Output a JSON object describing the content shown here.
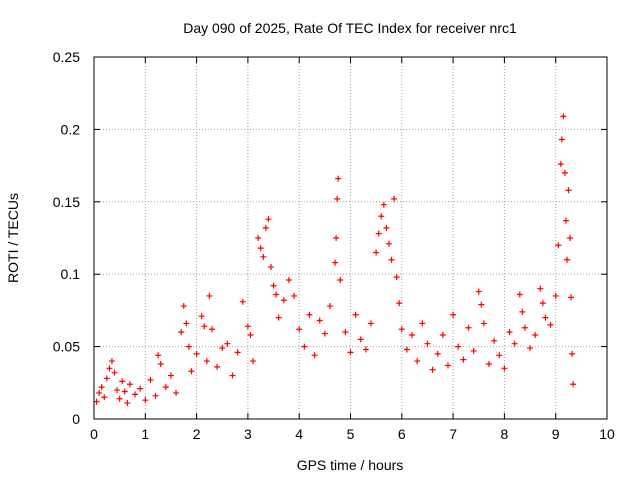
{
  "chart_data": {
    "type": "scatter",
    "title": "Day 090 of 2025, Rate Of TEC Index for receiver nrc1",
    "xlabel": "GPS time / hours",
    "ylabel": "ROTI / TECUs",
    "xlim": [
      0,
      10
    ],
    "ylim": [
      0,
      0.25
    ],
    "xticks": [
      0,
      1,
      2,
      3,
      4,
      5,
      6,
      7,
      8,
      9,
      10
    ],
    "yticks": [
      0,
      0.05,
      0.1,
      0.15,
      0.2,
      0.25
    ],
    "xtick_labels": [
      "0",
      "1",
      "2",
      "3",
      "4",
      "5",
      "6",
      "7",
      "8",
      "9",
      "10"
    ],
    "ytick_labels": [
      "0",
      "0.05",
      "0.1",
      "0.15",
      "0.2",
      "0.25"
    ],
    "grid": true,
    "marker": "plus",
    "colors": {
      "series": "#ff0000",
      "grid": "#a0a0a0",
      "axes": "#000000"
    },
    "series": [
      {
        "name": "ROTI",
        "points": [
          [
            0.05,
            0.012
          ],
          [
            0.1,
            0.018
          ],
          [
            0.15,
            0.022
          ],
          [
            0.2,
            0.015
          ],
          [
            0.25,
            0.028
          ],
          [
            0.3,
            0.035
          ],
          [
            0.35,
            0.04
          ],
          [
            0.4,
            0.032
          ],
          [
            0.45,
            0.02
          ],
          [
            0.5,
            0.014
          ],
          [
            0.55,
            0.026
          ],
          [
            0.6,
            0.019
          ],
          [
            0.65,
            0.011
          ],
          [
            0.7,
            0.024
          ],
          [
            0.8,
            0.017
          ],
          [
            0.9,
            0.021
          ],
          [
            1.0,
            0.013
          ],
          [
            1.1,
            0.027
          ],
          [
            1.2,
            0.016
          ],
          [
            1.25,
            0.044
          ],
          [
            1.3,
            0.038
          ],
          [
            1.4,
            0.022
          ],
          [
            1.5,
            0.03
          ],
          [
            1.6,
            0.018
          ],
          [
            1.7,
            0.06
          ],
          [
            1.75,
            0.078
          ],
          [
            1.8,
            0.066
          ],
          [
            1.85,
            0.05
          ],
          [
            1.9,
            0.033
          ],
          [
            2.0,
            0.045
          ],
          [
            2.1,
            0.071
          ],
          [
            2.15,
            0.064
          ],
          [
            2.2,
            0.04
          ],
          [
            2.25,
            0.085
          ],
          [
            2.3,
            0.062
          ],
          [
            2.4,
            0.036
          ],
          [
            2.5,
            0.049
          ],
          [
            2.6,
            0.052
          ],
          [
            2.7,
            0.03
          ],
          [
            2.8,
            0.046
          ],
          [
            2.9,
            0.081
          ],
          [
            3.0,
            0.064
          ],
          [
            3.05,
            0.058
          ],
          [
            3.1,
            0.04
          ],
          [
            3.2,
            0.125
          ],
          [
            3.25,
            0.118
          ],
          [
            3.3,
            0.112
          ],
          [
            3.35,
            0.132
          ],
          [
            3.4,
            0.138
          ],
          [
            3.45,
            0.105
          ],
          [
            3.5,
            0.092
          ],
          [
            3.55,
            0.086
          ],
          [
            3.6,
            0.07
          ],
          [
            3.7,
            0.082
          ],
          [
            3.8,
            0.096
          ],
          [
            3.9,
            0.085
          ],
          [
            4.0,
            0.062
          ],
          [
            4.1,
            0.05
          ],
          [
            4.2,
            0.072
          ],
          [
            4.3,
            0.044
          ],
          [
            4.4,
            0.068
          ],
          [
            4.5,
            0.059
          ],
          [
            4.6,
            0.078
          ],
          [
            4.7,
            0.108
          ],
          [
            4.72,
            0.125
          ],
          [
            4.74,
            0.152
          ],
          [
            4.76,
            0.166
          ],
          [
            4.8,
            0.096
          ],
          [
            4.9,
            0.06
          ],
          [
            5.0,
            0.046
          ],
          [
            5.1,
            0.072
          ],
          [
            5.2,
            0.055
          ],
          [
            5.3,
            0.048
          ],
          [
            5.4,
            0.066
          ],
          [
            5.5,
            0.115
          ],
          [
            5.55,
            0.128
          ],
          [
            5.6,
            0.14
          ],
          [
            5.65,
            0.148
          ],
          [
            5.7,
            0.132
          ],
          [
            5.75,
            0.121
          ],
          [
            5.8,
            0.11
          ],
          [
            5.85,
            0.152
          ],
          [
            5.9,
            0.098
          ],
          [
            5.95,
            0.08
          ],
          [
            6.0,
            0.062
          ],
          [
            6.1,
            0.048
          ],
          [
            6.2,
            0.058
          ],
          [
            6.3,
            0.04
          ],
          [
            6.4,
            0.066
          ],
          [
            6.5,
            0.052
          ],
          [
            6.6,
            0.034
          ],
          [
            6.7,
            0.045
          ],
          [
            6.8,
            0.058
          ],
          [
            6.9,
            0.037
          ],
          [
            7.0,
            0.072
          ],
          [
            7.1,
            0.05
          ],
          [
            7.2,
            0.041
          ],
          [
            7.3,
            0.063
          ],
          [
            7.4,
            0.047
          ],
          [
            7.5,
            0.088
          ],
          [
            7.55,
            0.079
          ],
          [
            7.6,
            0.066
          ],
          [
            7.7,
            0.038
          ],
          [
            7.8,
            0.054
          ],
          [
            7.9,
            0.044
          ],
          [
            8.0,
            0.035
          ],
          [
            8.1,
            0.06
          ],
          [
            8.2,
            0.052
          ],
          [
            8.3,
            0.086
          ],
          [
            8.35,
            0.074
          ],
          [
            8.4,
            0.063
          ],
          [
            8.5,
            0.049
          ],
          [
            8.6,
            0.058
          ],
          [
            8.7,
            0.09
          ],
          [
            8.75,
            0.08
          ],
          [
            8.8,
            0.07
          ],
          [
            8.9,
            0.065
          ],
          [
            9.0,
            0.085
          ],
          [
            9.05,
            0.12
          ],
          [
            9.1,
            0.176
          ],
          [
            9.12,
            0.193
          ],
          [
            9.15,
            0.209
          ],
          [
            9.18,
            0.17
          ],
          [
            9.2,
            0.137
          ],
          [
            9.22,
            0.11
          ],
          [
            9.25,
            0.158
          ],
          [
            9.28,
            0.125
          ],
          [
            9.3,
            0.084
          ],
          [
            9.32,
            0.045
          ],
          [
            9.34,
            0.024
          ]
        ]
      }
    ]
  }
}
